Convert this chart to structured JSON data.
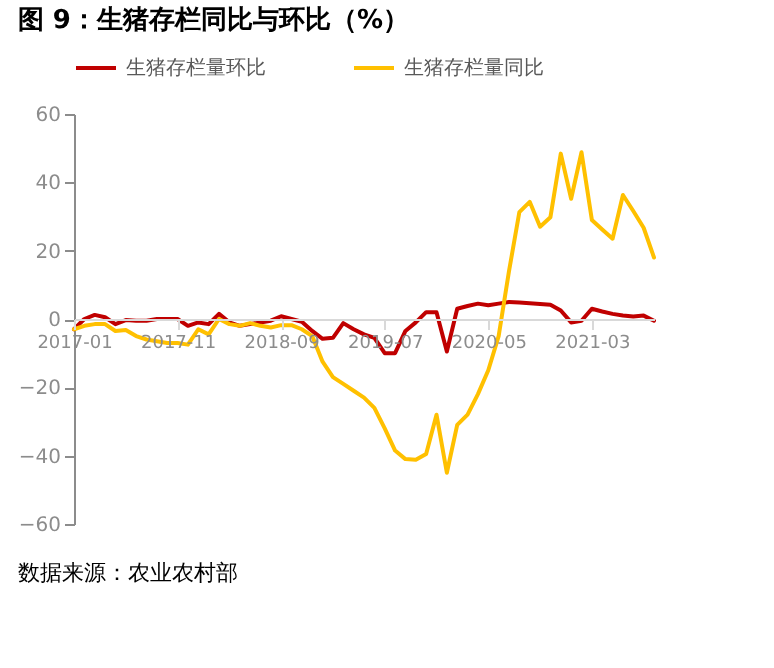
{
  "chart_data": {
    "type": "line",
    "title": "图 9：生猪存栏同比与环比（%）",
    "categories": [
      "2017-01",
      null,
      null,
      null,
      null,
      null,
      null,
      null,
      null,
      null,
      "2017-11",
      null,
      null,
      null,
      null,
      null,
      null,
      null,
      null,
      null,
      "2018-09",
      null,
      null,
      null,
      null,
      null,
      null,
      null,
      null,
      null,
      "2019-07",
      null,
      null,
      null,
      null,
      null,
      null,
      null,
      null,
      null,
      "2020-05",
      null,
      null,
      null,
      null,
      null,
      null,
      null,
      null,
      null,
      "2021-03",
      null,
      null,
      null,
      null,
      null,
      null
    ],
    "series": [
      {
        "name": "生猪存栏量环比",
        "color": "#c00000",
        "values": [
          -3,
          0,
          1.2,
          0.5,
          -1.5,
          -0.3,
          -0.5,
          -0.5,
          0,
          0,
          0,
          -2,
          -1,
          -1.5,
          1.5,
          -1,
          -2,
          -1.5,
          -1,
          -0.5,
          0.8,
          0,
          -0.8,
          -3.5,
          -5.8,
          -5.5,
          -1.2,
          -3,
          -4.5,
          -5.5,
          -10,
          -10,
          -3.5,
          -1,
          2,
          2,
          -9.5,
          3,
          3.8,
          4.5,
          4,
          4.5,
          5,
          4.8,
          4.6,
          4.4,
          4.2,
          2.5,
          -1,
          -0.5,
          3,
          2.2,
          1.5,
          1,
          0.7,
          1,
          -0.5
        ]
      },
      {
        "name": "生猪存栏量同比",
        "color": "#ffc000",
        "values": [
          -3,
          -2,
          -1.5,
          -1.5,
          -3.5,
          -3.2,
          -5,
          -6,
          -6.5,
          -7,
          -7,
          -7.5,
          -3,
          -4.5,
          0,
          -1.5,
          -2,
          -1.2,
          -2,
          -2.5,
          -1.8,
          -1.8,
          -3,
          -5,
          -12.5,
          -17,
          -19,
          -21,
          -23,
          -26,
          -32,
          -38.5,
          -41,
          -41.2,
          -39.5,
          -28,
          -45,
          -31,
          -28,
          -22,
          -15,
          -5,
          14,
          31.3,
          34.3,
          27,
          29.8,
          48.4,
          35.2,
          48.8,
          29,
          26.2,
          23.5,
          36.3,
          31.6,
          26.7,
          18
        ]
      }
    ],
    "ylim": [
      -60,
      60
    ],
    "yticks": [
      -60,
      -40,
      -20,
      0,
      20,
      40,
      60
    ],
    "grid": false,
    "legend": "top",
    "annotations": [
      "数据来源：农业农村部"
    ]
  }
}
